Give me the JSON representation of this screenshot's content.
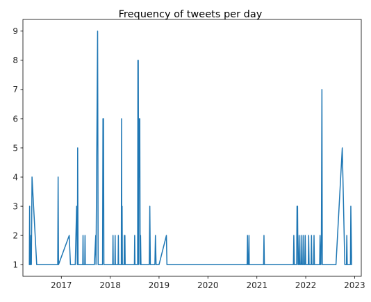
{
  "chart_data": {
    "type": "line",
    "title": "Frequency of tweets per day",
    "xlabel": "",
    "ylabel": "",
    "x_axis": "date",
    "xlim": [
      "2016-03-20",
      "2023-02-20"
    ],
    "ylim": [
      0.6,
      9.4
    ],
    "x_ticks": [
      "2017",
      "2018",
      "2019",
      "2020",
      "2021",
      "2022",
      "2023"
    ],
    "y_ticks": [
      "1",
      "2",
      "3",
      "4",
      "5",
      "6",
      "7",
      "8",
      "9"
    ],
    "grid": false,
    "legend": "none",
    "series": [
      {
        "color": "#1f77b4",
        "points": [
          [
            "2016-05-07",
            1
          ],
          [
            "2016-05-09",
            3
          ],
          [
            "2016-05-11",
            1
          ],
          [
            "2016-05-16",
            1
          ],
          [
            "2016-05-19",
            2
          ],
          [
            "2016-05-22",
            1
          ],
          [
            "2016-05-27",
            4
          ],
          [
            "2016-07-01",
            1
          ],
          [
            "2016-12-05",
            1
          ],
          [
            "2016-12-08",
            4
          ],
          [
            "2016-12-11",
            1
          ],
          [
            "2017-03-01",
            2
          ],
          [
            "2017-03-10",
            1
          ],
          [
            "2017-04-15",
            1
          ],
          [
            "2017-04-25",
            3
          ],
          [
            "2017-05-01",
            1
          ],
          [
            "2017-05-03",
            5
          ],
          [
            "2017-05-06",
            1
          ],
          [
            "2017-06-10",
            1
          ],
          [
            "2017-06-12",
            2
          ],
          [
            "2017-06-14",
            1
          ],
          [
            "2017-06-25",
            1
          ],
          [
            "2017-06-27",
            2
          ],
          [
            "2017-06-29",
            1
          ],
          [
            "2017-09-05",
            1
          ],
          [
            "2017-09-15",
            2
          ],
          [
            "2017-09-17",
            1
          ],
          [
            "2017-09-29",
            9
          ],
          [
            "2017-10-03",
            1
          ],
          [
            "2017-11-05",
            1
          ],
          [
            "2017-11-08",
            6
          ],
          [
            "2017-11-12",
            6
          ],
          [
            "2017-11-15",
            1
          ],
          [
            "2018-01-20",
            1
          ],
          [
            "2018-01-22",
            2
          ],
          [
            "2018-01-24",
            1
          ],
          [
            "2018-02-05",
            1
          ],
          [
            "2018-02-07",
            2
          ],
          [
            "2018-02-09",
            1
          ],
          [
            "2018-03-01",
            1
          ],
          [
            "2018-03-03",
            2
          ],
          [
            "2018-03-05",
            1
          ],
          [
            "2018-03-25",
            1
          ],
          [
            "2018-03-27",
            6
          ],
          [
            "2018-03-29",
            1
          ],
          [
            "2018-03-31",
            3
          ],
          [
            "2018-04-02",
            1
          ],
          [
            "2018-04-15",
            1
          ],
          [
            "2018-04-17",
            2
          ],
          [
            "2018-04-19",
            1
          ],
          [
            "2018-04-21",
            2
          ],
          [
            "2018-04-23",
            1
          ],
          [
            "2018-07-01",
            1
          ],
          [
            "2018-07-03",
            2
          ],
          [
            "2018-07-05",
            1
          ],
          [
            "2018-07-25",
            1
          ],
          [
            "2018-07-27",
            8
          ],
          [
            "2018-07-30",
            8
          ],
          [
            "2018-08-02",
            1
          ],
          [
            "2018-08-04",
            6
          ],
          [
            "2018-08-07",
            4
          ],
          [
            "2018-08-10",
            6
          ],
          [
            "2018-08-13",
            1
          ],
          [
            "2018-08-16",
            2
          ],
          [
            "2018-08-19",
            1
          ],
          [
            "2018-10-20",
            1
          ],
          [
            "2018-10-24",
            3
          ],
          [
            "2018-10-28",
            1
          ],
          [
            "2018-12-01",
            1
          ],
          [
            "2018-12-05",
            2
          ],
          [
            "2018-12-10",
            1
          ],
          [
            "2019-01-01",
            1
          ],
          [
            "2019-02-25",
            2
          ],
          [
            "2019-03-01",
            1
          ],
          [
            "2020-10-20",
            1
          ],
          [
            "2020-10-23",
            2
          ],
          [
            "2020-10-26",
            1
          ],
          [
            "2020-11-01",
            1
          ],
          [
            "2020-11-03",
            2
          ],
          [
            "2020-11-05",
            1
          ],
          [
            "2021-02-20",
            1
          ],
          [
            "2021-02-23",
            2
          ],
          [
            "2021-02-26",
            1
          ],
          [
            "2021-10-01",
            1
          ],
          [
            "2021-10-04",
            2
          ],
          [
            "2021-10-08",
            1
          ],
          [
            "2021-10-25",
            1
          ],
          [
            "2021-10-28",
            3
          ],
          [
            "2021-11-01",
            3
          ],
          [
            "2021-11-04",
            1
          ],
          [
            "2021-11-10",
            1
          ],
          [
            "2021-11-13",
            2
          ],
          [
            "2021-11-17",
            1
          ],
          [
            "2021-11-25",
            1
          ],
          [
            "2021-11-28",
            2
          ],
          [
            "2021-12-02",
            1
          ],
          [
            "2021-12-10",
            1
          ],
          [
            "2021-12-13",
            2
          ],
          [
            "2021-12-16",
            1
          ],
          [
            "2021-12-25",
            1
          ],
          [
            "2021-12-28",
            2
          ],
          [
            "2022-01-01",
            1
          ],
          [
            "2022-01-20",
            1
          ],
          [
            "2022-01-23",
            2
          ],
          [
            "2022-01-26",
            1
          ],
          [
            "2022-02-10",
            1
          ],
          [
            "2022-02-13",
            2
          ],
          [
            "2022-02-16",
            1
          ],
          [
            "2022-03-01",
            1
          ],
          [
            "2022-03-04",
            2
          ],
          [
            "2022-03-07",
            1
          ],
          [
            "2022-04-15",
            1
          ],
          [
            "2022-04-18",
            2
          ],
          [
            "2022-04-21",
            1
          ],
          [
            "2022-04-25",
            1
          ],
          [
            "2022-04-28",
            2
          ],
          [
            "2022-05-02",
            7
          ],
          [
            "2022-05-05",
            1
          ],
          [
            "2022-08-15",
            1
          ],
          [
            "2022-10-01",
            5
          ],
          [
            "2022-10-20",
            1
          ],
          [
            "2022-11-01",
            1
          ],
          [
            "2022-11-04",
            2
          ],
          [
            "2022-11-07",
            1
          ],
          [
            "2022-12-01",
            1
          ],
          [
            "2022-12-04",
            3
          ],
          [
            "2022-12-10",
            1
          ]
        ]
      }
    ]
  }
}
